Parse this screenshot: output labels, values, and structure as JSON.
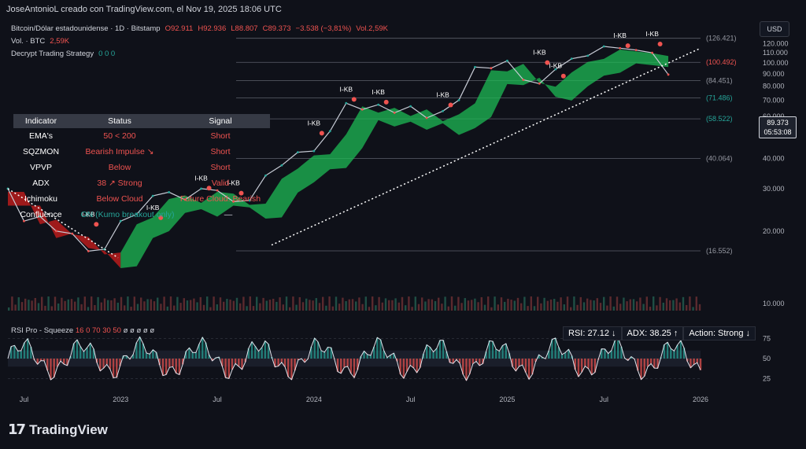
{
  "header": {
    "credit": "JoseAntonioL creado con TradingView.com, el Nov 19, 2025 18:06 UTC"
  },
  "legend": {
    "symbol": "Bitcoin/Dólar estadounidense · 1D · Bitstamp",
    "ohlc": {
      "o": "O92.911",
      "h": "H92.936",
      "l": "L88.807",
      "c": "C89.373",
      "chg": "−3.538 (−3,81%)",
      "vol": "Vol.2,59K"
    },
    "vol_line": "Vol. · BTC",
    "vol_value": "2,59K",
    "strategy": "Decrypt Trading Strategy",
    "strategy_values": "0  0  0"
  },
  "currency": "USD",
  "last_price": {
    "price": "89.373",
    "countdown": "05:53:08"
  },
  "table": {
    "headers": [
      "Indicator",
      "Status",
      "Signal"
    ],
    "rows": [
      {
        "indicator": "EMA's",
        "status": "50 < 200",
        "signal": "Short"
      },
      {
        "indicator": "SQZMON",
        "status": "Bearish Impulse ↘",
        "signal": "Short"
      },
      {
        "indicator": "VPVP",
        "status": "Below",
        "signal": "Short"
      },
      {
        "indicator": "ADX",
        "status": "38 ↗ Strong",
        "signal": "Valid"
      },
      {
        "indicator": "Ichimoku",
        "status": "Below Cloud",
        "signal": "Future Cloud: Bearish"
      },
      {
        "indicator": "Confluence",
        "status": "ON (Kumo breakout only)",
        "signal": "—"
      }
    ]
  },
  "rsi_panel": {
    "title": "RSI Pro - Squeeze",
    "params": "16  0  70  30  50",
    "extra": "ø ø ø ø ø",
    "rsi": "RSI: 27.12 ↓",
    "adx": "ADX: 38.25 ↑",
    "action": "Action: Strong ↓"
  },
  "brand": "TradingView",
  "colors": {
    "bull": "#26a69a",
    "bear": "#ef5350",
    "cloud_green": "#1db954",
    "cloud_red": "#b71c1c",
    "bg": "#0f1119"
  },
  "chart_data": {
    "type": "line",
    "series": [
      {
        "name": "Bitcoin/Dólar estadounidense",
        "x": [
          "2022-06",
          "2022-07",
          "2022-08",
          "2022-09",
          "2022-10",
          "2022-11",
          "2022-12",
          "2023-01",
          "2023-02",
          "2023-03",
          "2023-04",
          "2023-05",
          "2023-06",
          "2023-07",
          "2023-08",
          "2023-09",
          "2023-10",
          "2023-11",
          "2023-12",
          "2024-01",
          "2024-02",
          "2024-03",
          "2024-04",
          "2024-05",
          "2024-06",
          "2024-07",
          "2024-08",
          "2024-09",
          "2024-10",
          "2024-11",
          "2024-12",
          "2025-01",
          "2025-02",
          "2025-03",
          "2025-04",
          "2025-05",
          "2025-06",
          "2025-07",
          "2025-08",
          "2025-09",
          "2025-10",
          "2025-11"
        ],
        "values": [
          30000,
          22000,
          23000,
          20000,
          19500,
          16500,
          16800,
          22000,
          23500,
          28000,
          29000,
          27000,
          30000,
          29500,
          26500,
          26800,
          34000,
          37500,
          42500,
          43000,
          52000,
          68000,
          64000,
          67000,
          62000,
          66000,
          59000,
          63000,
          70000,
          96000,
          95000,
          102000,
          85000,
          82000,
          94000,
          104000,
          107000,
          117000,
          115000,
          113000,
          110000,
          89373
        ]
      }
    ],
    "horizontal_levels": [
      126.421,
      100.492,
      84.451,
      71.486,
      58.522,
      40.064,
      16.552
    ],
    "y_ticks": [
      120000,
      110000,
      100000,
      90000,
      80000,
      70000,
      60000,
      50000,
      40000,
      30000,
      20000,
      10000
    ],
    "y_tick_labels": [
      "120.000",
      "110.000",
      "100.000",
      "90.000",
      "80.000",
      "70.000",
      "60.000",
      "50.000",
      "40.000",
      "30.000",
      "20.000",
      "10.000"
    ],
    "x_tick_labels": [
      "Jul",
      "2023",
      "Jul",
      "2024",
      "Jul",
      "2025",
      "Jul",
      "2026"
    ],
    "level_labels": [
      "(126.421)",
      "(100.492)",
      "(84.451)",
      "(71.486)",
      "(58.522)",
      "(40.064)",
      "(16.552)"
    ],
    "rsi_ticks": [
      75,
      50,
      25
    ],
    "annotations": [
      "I-KB"
    ],
    "ylim": [
      0,
      130000
    ],
    "grid": false,
    "log_scale": true
  }
}
